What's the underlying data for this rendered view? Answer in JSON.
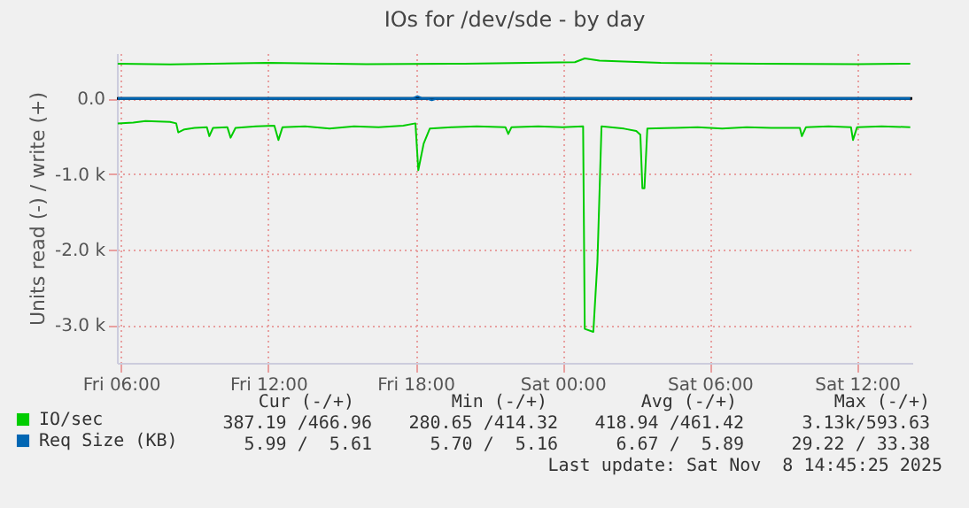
{
  "chart_data": {
    "type": "line",
    "title": "IOs for /dev/sde - by day",
    "ylabel": "Units read (-) / write (+)",
    "xlim": [
      "2025-11-07T05:50",
      "2025-11-08T14:15"
    ],
    "xticks": [
      {
        "value": "2025-11-07T06:00",
        "label": "Fri 06:00"
      },
      {
        "value": "2025-11-07T12:00",
        "label": "Fri 12:00"
      },
      {
        "value": "2025-11-07T18:00",
        "label": "Fri 18:00"
      },
      {
        "value": "2025-11-08T00:00",
        "label": "Sat 00:00"
      },
      {
        "value": "2025-11-08T06:00",
        "label": "Sat 06:00"
      },
      {
        "value": "2025-11-08T12:00",
        "label": "Sat 12:00"
      }
    ],
    "ylim": [
      -3500,
      600
    ],
    "yticks": [
      {
        "value": 0,
        "label": "0.0"
      },
      {
        "value": -1000,
        "label": "-1.0 k"
      },
      {
        "value": -2000,
        "label": "-2.0 k"
      },
      {
        "value": -3000,
        "label": "-3.0 k"
      }
    ],
    "grid": true,
    "legend": "bottom left",
    "line_style": "solid",
    "ref_lines": [
      {
        "axis": "y",
        "value": 0,
        "color": "#000000"
      }
    ],
    "series": [
      {
        "name": "IO/sec",
        "color": "#00cc00",
        "x": [
          "2025-11-07T05:52",
          "2025-11-07T06:30",
          "2025-11-07T07:00",
          "2025-11-07T08:00",
          "2025-11-07T08:15",
          "2025-11-07T08:20",
          "2025-11-07T08:35",
          "2025-11-07T09:00",
          "2025-11-07T09:30",
          "2025-11-07T09:36",
          "2025-11-07T09:45",
          "2025-11-07T10:20",
          "2025-11-07T10:28",
          "2025-11-07T10:40",
          "2025-11-07T11:30",
          "2025-11-07T12:15",
          "2025-11-07T12:25",
          "2025-11-07T12:35",
          "2025-11-07T13:30",
          "2025-11-07T14:30",
          "2025-11-07T15:30",
          "2025-11-07T16:30",
          "2025-11-07T17:30",
          "2025-11-07T18:00",
          "2025-11-07T18:07",
          "2025-11-07T18:20",
          "2025-11-07T18:35",
          "2025-11-07T19:30",
          "2025-11-07T20:30",
          "2025-11-07T21:40",
          "2025-11-07T21:47",
          "2025-11-07T21:55",
          "2025-11-07T23:00",
          "2025-11-08T00:00",
          "2025-11-08T00:50",
          "2025-11-08T00:54",
          "2025-11-08T01:15",
          "2025-11-08T01:25",
          "2025-11-08T01:35",
          "2025-11-08T02:30",
          "2025-11-08T03:00",
          "2025-11-08T03:10",
          "2025-11-08T03:15",
          "2025-11-08T03:20",
          "2025-11-08T03:27",
          "2025-11-08T04:30",
          "2025-11-08T05:30",
          "2025-11-08T06:30",
          "2025-11-08T07:30",
          "2025-11-08T08:30",
          "2025-11-08T09:40",
          "2025-11-08T09:45",
          "2025-11-08T09:55",
          "2025-11-08T10:50",
          "2025-11-08T11:45",
          "2025-11-08T11:50",
          "2025-11-08T12:00",
          "2025-11-08T13:00",
          "2025-11-08T14:10"
        ],
        "values": [
          -330,
          -320,
          -300,
          -310,
          -330,
          -450,
          -410,
          -390,
          -380,
          -500,
          -390,
          -380,
          -520,
          -390,
          -370,
          -360,
          -550,
          -380,
          -370,
          -400,
          -370,
          -380,
          -360,
          -330,
          -950,
          -600,
          -400,
          -380,
          -370,
          -380,
          -470,
          -380,
          -370,
          -380,
          -370,
          -3050,
          -3090,
          -2160,
          -370,
          -400,
          -430,
          -480,
          -1190,
          -1190,
          -400,
          -390,
          -380,
          -400,
          -380,
          -390,
          -390,
          -500,
          -380,
          -370,
          -380,
          -550,
          -380,
          -370,
          -380
        ]
      },
      {
        "color": "#00cc00",
        "x": [
          "2025-11-07T05:52",
          "2025-11-07T08:00",
          "2025-11-07T12:00",
          "2025-11-07T16:00",
          "2025-11-07T20:00",
          "2025-11-08T00:30",
          "2025-11-08T00:54",
          "2025-11-08T01:30",
          "2025-11-08T04:00",
          "2025-11-08T08:00",
          "2025-11-08T12:00",
          "2025-11-08T14:10"
        ],
        "values": [
          460,
          450,
          470,
          455,
          460,
          480,
          530,
          500,
          470,
          460,
          455,
          460
        ]
      },
      {
        "name": "Req Size (KB)",
        "color": "#0066b3",
        "x": [
          "2025-11-07T05:52",
          "2025-11-07T18:30",
          "2025-11-07T18:40",
          "2025-11-07T18:50",
          "2025-11-08T14:10"
        ],
        "values": [
          -7,
          -7,
          -25,
          -7,
          -7
        ]
      },
      {
        "color": "#0066b3",
        "x": [
          "2025-11-07T05:52",
          "2025-11-07T17:55",
          "2025-11-07T18:05",
          "2025-11-07T18:15",
          "2025-11-08T14:10"
        ],
        "values": [
          6,
          6,
          30,
          6,
          6
        ]
      }
    ],
    "annotations": [
      "Cur (-/+)",
      "Min (-/+)",
      "Avg (-/+)",
      "Max (-/+)",
      "387.19 /466.96",
      "280.65 /414.32",
      "418.94 /461.42",
      "3.13k/593.63",
      "5.99 /  5.61",
      "5.70 /  5.16",
      "6.67 /  5.89",
      "29.22 / 33.38",
      "Last update: Sat Nov  8 14:45:25 2025"
    ]
  }
}
